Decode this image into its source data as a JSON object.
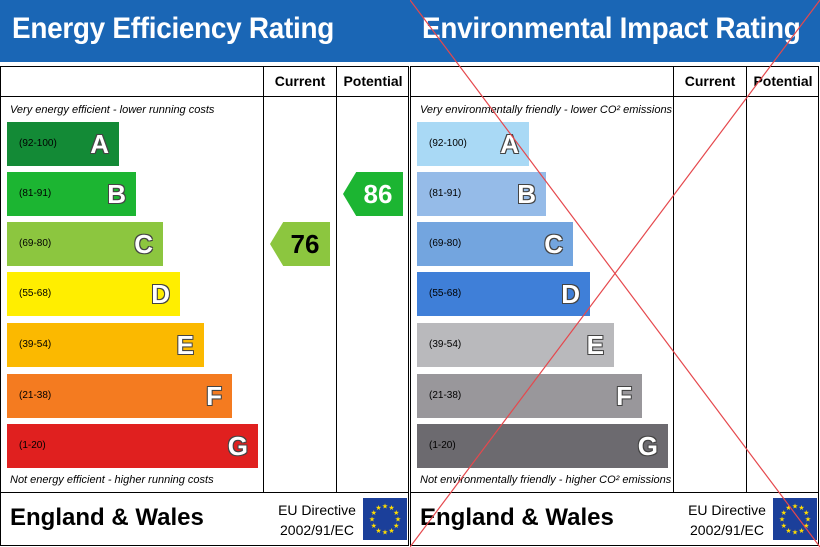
{
  "energy": {
    "title": "Energy Efficiency Rating",
    "col_current": "Current",
    "col_potential": "Potential",
    "caption_top": "Very energy efficient - lower running costs",
    "caption_bottom": "Not energy efficient - higher running costs",
    "bands": [
      {
        "range": "(92-100)",
        "letter": "A",
        "color": "#138a36"
      },
      {
        "range": "(81-91)",
        "letter": "B",
        "color": "#1cb532"
      },
      {
        "range": "(69-80)",
        "letter": "C",
        "color": "#8cc63f"
      },
      {
        "range": "(55-68)",
        "letter": "D",
        "color": "#ffee00"
      },
      {
        "range": "(39-54)",
        "letter": "E",
        "color": "#fbb900"
      },
      {
        "range": "(21-38)",
        "letter": "F",
        "color": "#f47b20"
      },
      {
        "range": "(1-20)",
        "letter": "G",
        "color": "#e0201f"
      }
    ],
    "current": {
      "value": "76",
      "band": "C",
      "color": "#8cc63f"
    },
    "potential": {
      "value": "86",
      "band": "B",
      "color": "#1cb532"
    },
    "footer": "England & Wales",
    "directive_line1": "EU Directive",
    "directive_line2": "2002/91/EC"
  },
  "environmental": {
    "title": "Environmental Impact Rating",
    "col_current": "Current",
    "col_potential": "Potential",
    "caption_top": "Very environmentally friendly - lower CO² emissions",
    "caption_bottom": "Not environmentally friendly - higher CO² emissions",
    "bands": [
      {
        "range": "(92-100)",
        "letter": "A",
        "color": "#a9d9f5"
      },
      {
        "range": "(81-91)",
        "letter": "B",
        "color": "#95bbe8"
      },
      {
        "range": "(69-80)",
        "letter": "C",
        "color": "#73a5df"
      },
      {
        "range": "(55-68)",
        "letter": "D",
        "color": "#3f7fd8"
      },
      {
        "range": "(39-54)",
        "letter": "E",
        "color": "#b9b9bc"
      },
      {
        "range": "(21-38)",
        "letter": "F",
        "color": "#99979b"
      },
      {
        "range": "(1-20)",
        "letter": "G",
        "color": "#6c6a6f"
      }
    ],
    "crossed_out": true,
    "cross_color": "#e5484d",
    "footer": "England & Wales",
    "directive_line1": "EU Directive",
    "directive_line2": "2002/91/EC"
  },
  "colors": {
    "header": "#1a66b5",
    "flag": "#1b3f9a",
    "flag_stars": "#ffdd00"
  }
}
